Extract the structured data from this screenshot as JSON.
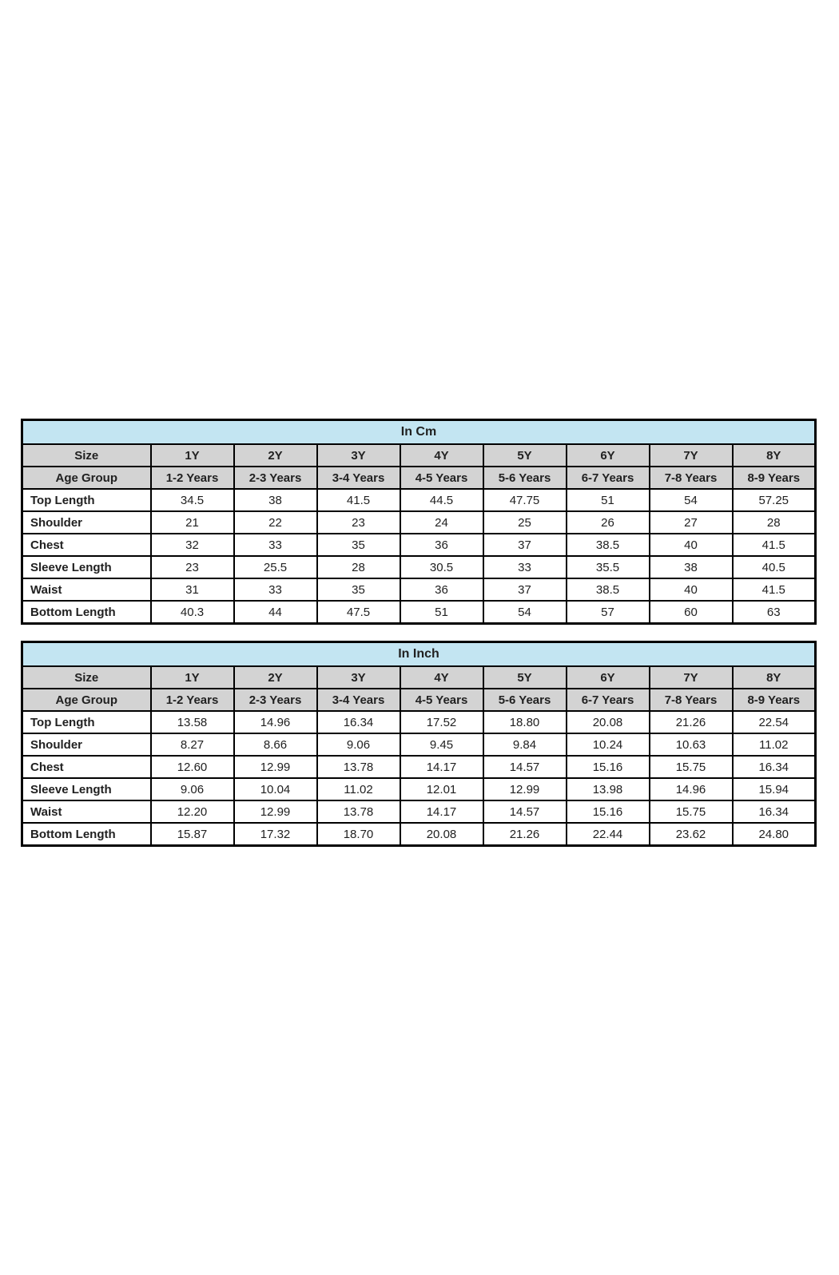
{
  "page": {
    "background": "#ffffff"
  },
  "colors": {
    "title_bg": "#c3e5f2",
    "header_bg": "#d3d3d3",
    "border": "#000000",
    "text": "#212121"
  },
  "chart_data": [
    {
      "type": "table",
      "title": "In Cm",
      "header_rows": [
        {
          "label": "Size",
          "cells": [
            "1Y",
            "2Y",
            "3Y",
            "4Y",
            "5Y",
            "6Y",
            "7Y",
            "8Y"
          ]
        },
        {
          "label": "Age Group",
          "cells": [
            "1-2 Years",
            "2-3 Years",
            "3-4 Years",
            "4-5 Years",
            "5-6 Years",
            "6-7 Years",
            "7-8 Years",
            "8-9 Years"
          ]
        }
      ],
      "rows": [
        {
          "label": "Top Length",
          "values": [
            "34.5",
            "38",
            "41.5",
            "44.5",
            "47.75",
            "51",
            "54",
            "57.25"
          ]
        },
        {
          "label": "Shoulder",
          "values": [
            "21",
            "22",
            "23",
            "24",
            "25",
            "26",
            "27",
            "28"
          ]
        },
        {
          "label": "Chest",
          "values": [
            "32",
            "33",
            "35",
            "36",
            "37",
            "38.5",
            "40",
            "41.5"
          ]
        },
        {
          "label": "Sleeve Length",
          "values": [
            "23",
            "25.5",
            "28",
            "30.5",
            "33",
            "35.5",
            "38",
            "40.5"
          ]
        },
        {
          "label": "Waist",
          "values": [
            "31",
            "33",
            "35",
            "36",
            "37",
            "38.5",
            "40",
            "41.5"
          ]
        },
        {
          "label": "Bottom Length",
          "values": [
            "40.3",
            "44",
            "47.5",
            "51",
            "54",
            "57",
            "60",
            "63"
          ]
        }
      ]
    },
    {
      "type": "table",
      "title": "In Inch",
      "header_rows": [
        {
          "label": "Size",
          "cells": [
            "1Y",
            "2Y",
            "3Y",
            "4Y",
            "5Y",
            "6Y",
            "7Y",
            "8Y"
          ]
        },
        {
          "label": "Age Group",
          "cells": [
            "1-2 Years",
            "2-3 Years",
            "3-4 Years",
            "4-5 Years",
            "5-6 Years",
            "6-7 Years",
            "7-8 Years",
            "8-9 Years"
          ]
        }
      ],
      "rows": [
        {
          "label": "Top Length",
          "values": [
            "13.58",
            "14.96",
            "16.34",
            "17.52",
            "18.80",
            "20.08",
            "21.26",
            "22.54"
          ]
        },
        {
          "label": "Shoulder",
          "values": [
            "8.27",
            "8.66",
            "9.06",
            "9.45",
            "9.84",
            "10.24",
            "10.63",
            "11.02"
          ]
        },
        {
          "label": "Chest",
          "values": [
            "12.60",
            "12.99",
            "13.78",
            "14.17",
            "14.57",
            "15.16",
            "15.75",
            "16.34"
          ]
        },
        {
          "label": "Sleeve Length",
          "values": [
            "9.06",
            "10.04",
            "11.02",
            "12.01",
            "12.99",
            "13.98",
            "14.96",
            "15.94"
          ]
        },
        {
          "label": "Waist",
          "values": [
            "12.20",
            "12.99",
            "13.78",
            "14.17",
            "14.57",
            "15.16",
            "15.75",
            "16.34"
          ]
        },
        {
          "label": "Bottom Length",
          "values": [
            "15.87",
            "17.32",
            "18.70",
            "20.08",
            "21.26",
            "22.44",
            "23.62",
            "24.80"
          ]
        }
      ]
    }
  ]
}
